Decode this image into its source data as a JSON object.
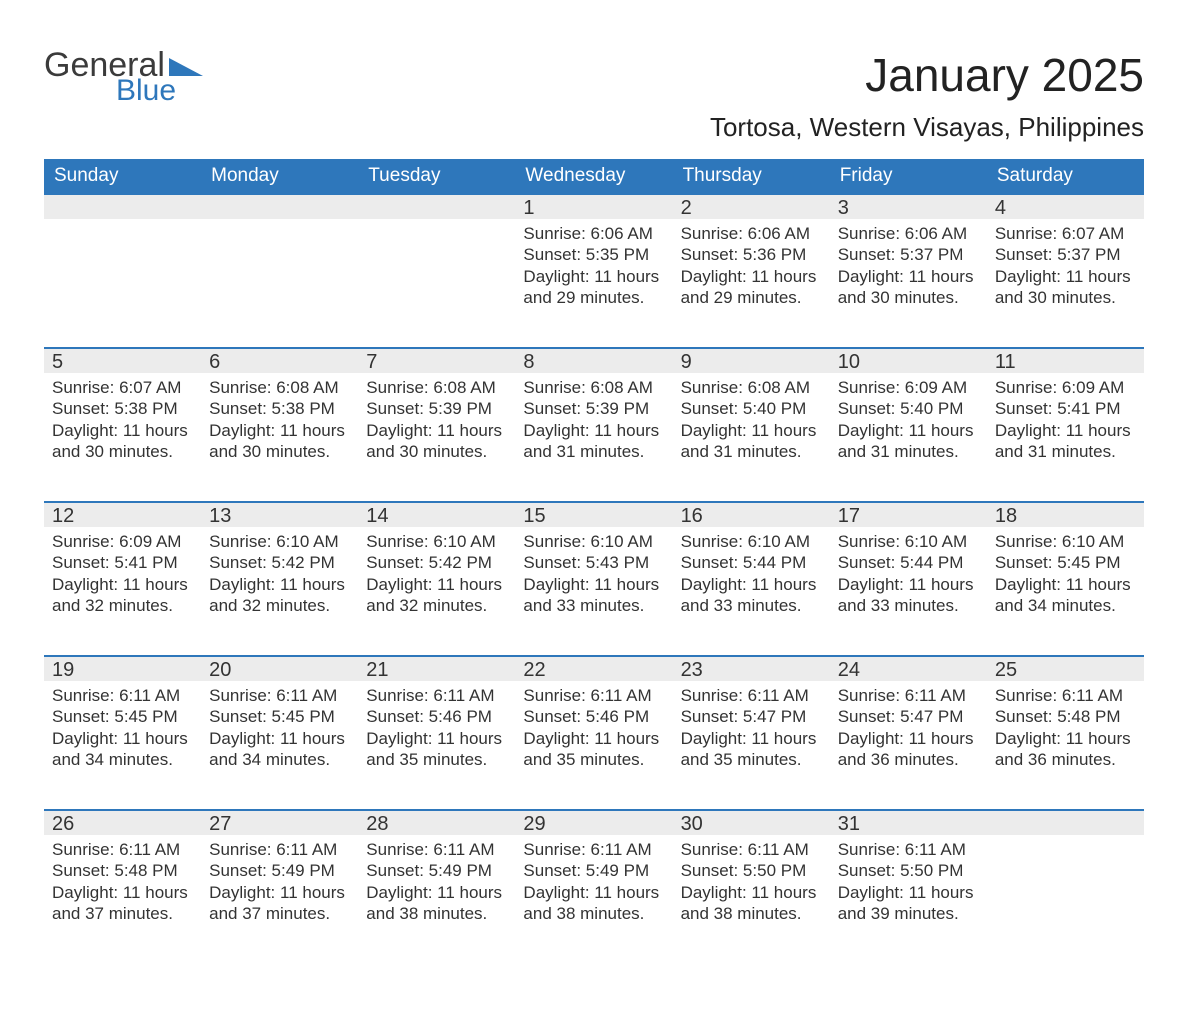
{
  "colors": {
    "header_bg": "#2e77bb",
    "header_text": "#ffffff",
    "daynum_bg": "#ececec",
    "daynum_border": "#2e77bb",
    "body_text": "#333333",
    "page_bg": "#ffffff",
    "logo_gray": "#3b3b3b",
    "logo_blue": "#2e77bb"
  },
  "typography": {
    "title_fontsize_pt": 34,
    "location_fontsize_pt": 20,
    "weekday_fontsize_pt": 14,
    "daynum_fontsize_pt": 15,
    "body_fontsize_pt": 13
  },
  "logo": {
    "text_top": "General",
    "text_bottom": "Blue",
    "triangle_color": "#2e77bb"
  },
  "title": "January 2025",
  "location": "Tortosa, Western Visayas, Philippines",
  "weekdays": [
    "Sunday",
    "Monday",
    "Tuesday",
    "Wednesday",
    "Thursday",
    "Friday",
    "Saturday"
  ],
  "calendar": {
    "type": "table",
    "columns": 7,
    "rows": 5,
    "first_weekday_index": 3,
    "days": [
      {
        "n": 1,
        "sunrise": "6:06 AM",
        "sunset": "5:35 PM",
        "daylight": "11 hours and 29 minutes."
      },
      {
        "n": 2,
        "sunrise": "6:06 AM",
        "sunset": "5:36 PM",
        "daylight": "11 hours and 29 minutes."
      },
      {
        "n": 3,
        "sunrise": "6:06 AM",
        "sunset": "5:37 PM",
        "daylight": "11 hours and 30 minutes."
      },
      {
        "n": 4,
        "sunrise": "6:07 AM",
        "sunset": "5:37 PM",
        "daylight": "11 hours and 30 minutes."
      },
      {
        "n": 5,
        "sunrise": "6:07 AM",
        "sunset": "5:38 PM",
        "daylight": "11 hours and 30 minutes."
      },
      {
        "n": 6,
        "sunrise": "6:08 AM",
        "sunset": "5:38 PM",
        "daylight": "11 hours and 30 minutes."
      },
      {
        "n": 7,
        "sunrise": "6:08 AM",
        "sunset": "5:39 PM",
        "daylight": "11 hours and 30 minutes."
      },
      {
        "n": 8,
        "sunrise": "6:08 AM",
        "sunset": "5:39 PM",
        "daylight": "11 hours and 31 minutes."
      },
      {
        "n": 9,
        "sunrise": "6:08 AM",
        "sunset": "5:40 PM",
        "daylight": "11 hours and 31 minutes."
      },
      {
        "n": 10,
        "sunrise": "6:09 AM",
        "sunset": "5:40 PM",
        "daylight": "11 hours and 31 minutes."
      },
      {
        "n": 11,
        "sunrise": "6:09 AM",
        "sunset": "5:41 PM",
        "daylight": "11 hours and 31 minutes."
      },
      {
        "n": 12,
        "sunrise": "6:09 AM",
        "sunset": "5:41 PM",
        "daylight": "11 hours and 32 minutes."
      },
      {
        "n": 13,
        "sunrise": "6:10 AM",
        "sunset": "5:42 PM",
        "daylight": "11 hours and 32 minutes."
      },
      {
        "n": 14,
        "sunrise": "6:10 AM",
        "sunset": "5:42 PM",
        "daylight": "11 hours and 32 minutes."
      },
      {
        "n": 15,
        "sunrise": "6:10 AM",
        "sunset": "5:43 PM",
        "daylight": "11 hours and 33 minutes."
      },
      {
        "n": 16,
        "sunrise": "6:10 AM",
        "sunset": "5:44 PM",
        "daylight": "11 hours and 33 minutes."
      },
      {
        "n": 17,
        "sunrise": "6:10 AM",
        "sunset": "5:44 PM",
        "daylight": "11 hours and 33 minutes."
      },
      {
        "n": 18,
        "sunrise": "6:10 AM",
        "sunset": "5:45 PM",
        "daylight": "11 hours and 34 minutes."
      },
      {
        "n": 19,
        "sunrise": "6:11 AM",
        "sunset": "5:45 PM",
        "daylight": "11 hours and 34 minutes."
      },
      {
        "n": 20,
        "sunrise": "6:11 AM",
        "sunset": "5:45 PM",
        "daylight": "11 hours and 34 minutes."
      },
      {
        "n": 21,
        "sunrise": "6:11 AM",
        "sunset": "5:46 PM",
        "daylight": "11 hours and 35 minutes."
      },
      {
        "n": 22,
        "sunrise": "6:11 AM",
        "sunset": "5:46 PM",
        "daylight": "11 hours and 35 minutes."
      },
      {
        "n": 23,
        "sunrise": "6:11 AM",
        "sunset": "5:47 PM",
        "daylight": "11 hours and 35 minutes."
      },
      {
        "n": 24,
        "sunrise": "6:11 AM",
        "sunset": "5:47 PM",
        "daylight": "11 hours and 36 minutes."
      },
      {
        "n": 25,
        "sunrise": "6:11 AM",
        "sunset": "5:48 PM",
        "daylight": "11 hours and 36 minutes."
      },
      {
        "n": 26,
        "sunrise": "6:11 AM",
        "sunset": "5:48 PM",
        "daylight": "11 hours and 37 minutes."
      },
      {
        "n": 27,
        "sunrise": "6:11 AM",
        "sunset": "5:49 PM",
        "daylight": "11 hours and 37 minutes."
      },
      {
        "n": 28,
        "sunrise": "6:11 AM",
        "sunset": "5:49 PM",
        "daylight": "11 hours and 38 minutes."
      },
      {
        "n": 29,
        "sunrise": "6:11 AM",
        "sunset": "5:49 PM",
        "daylight": "11 hours and 38 minutes."
      },
      {
        "n": 30,
        "sunrise": "6:11 AM",
        "sunset": "5:50 PM",
        "daylight": "11 hours and 38 minutes."
      },
      {
        "n": 31,
        "sunrise": "6:11 AM",
        "sunset": "5:50 PM",
        "daylight": "11 hours and 39 minutes."
      }
    ]
  },
  "labels": {
    "sunrise_prefix": "Sunrise: ",
    "sunset_prefix": "Sunset: ",
    "daylight_prefix": "Daylight: "
  }
}
